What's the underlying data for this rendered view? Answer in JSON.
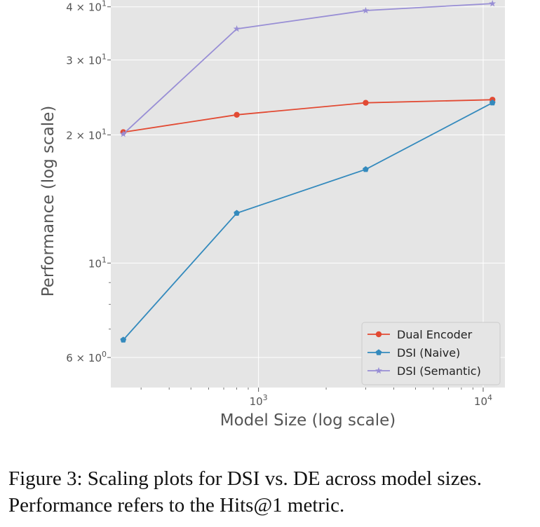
{
  "chart_data": {
    "type": "line",
    "xscale": "log",
    "yscale": "log",
    "xlabel": "Model Size (log scale)",
    "ylabel": "Performance (log scale)",
    "x": [
      250,
      800,
      3000,
      11000
    ],
    "xlim": [
      220,
      12500
    ],
    "ylim": [
      5.1,
      41.5
    ],
    "grid": true,
    "background": "#e5e5e5",
    "x_ticks": [
      {
        "value": 1000,
        "base": "10",
        "exp": "3"
      },
      {
        "value": 10000,
        "base": "10",
        "exp": "4"
      }
    ],
    "y_ticks": [
      {
        "value": 6,
        "base": "6 × 10",
        "exp": "0"
      },
      {
        "value": 10,
        "base": "10",
        "exp": "1"
      },
      {
        "value": 20,
        "base": "2 × 10",
        "exp": "1"
      },
      {
        "value": 30,
        "base": "3 × 10",
        "exp": "1"
      },
      {
        "value": 40,
        "base": "4 × 10",
        "exp": "1"
      }
    ],
    "series": [
      {
        "name": "Dual Encoder",
        "values": [
          20.3,
          22.3,
          23.8,
          24.2
        ],
        "color": "#e24a33",
        "marker": "circle"
      },
      {
        "name": "DSI (Naive)",
        "values": [
          6.6,
          13.1,
          16.6,
          23.8
        ],
        "color": "#348abd",
        "marker": "pentagon"
      },
      {
        "name": "DSI (Semantic)",
        "values": [
          20.1,
          35.5,
          39.2,
          40.7
        ],
        "color": "#988ed5",
        "marker": "star"
      }
    ],
    "legend": "lower-right"
  },
  "caption": {
    "text": "Figure 3: Scaling plots for DSI vs. DE across model sizes. Performance refers to the Hits@1 metric."
  }
}
